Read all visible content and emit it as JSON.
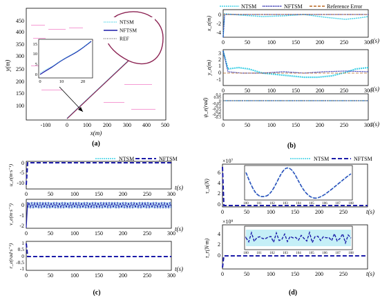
{
  "colors": {
    "ntsm": "#3fd0e6",
    "nftsm": "#1a1aa8",
    "ref": "#7a1f4e",
    "err": "#b5651d",
    "traj": "#8b2252"
  },
  "panels": {
    "a": {
      "label": "(a)",
      "legend": [
        "NTSM",
        "NFTSM",
        "REF"
      ],
      "xlabel": "x(m)",
      "ylabel": "y(m)",
      "xticks": [
        "-100",
        "0",
        "100",
        "200",
        "300",
        "400",
        "500"
      ],
      "yticks": [
        "100",
        "150",
        "200",
        "250",
        "300",
        "350",
        "400",
        "450"
      ],
      "inset_xticks": [
        "0",
        "10",
        "20"
      ],
      "inset_yticks": [
        "0",
        "5",
        "10",
        "15"
      ]
    },
    "b": {
      "label": "(b)",
      "legend": [
        "NTSM",
        "NFTSM",
        "Reference Error"
      ],
      "ylabels": [
        "x_e(m)",
        "y_e(m)",
        "ψ_e(rad)"
      ],
      "xlabel": "t(s)",
      "xticks": [
        "0",
        "50",
        "100",
        "150",
        "200",
        "250",
        "300"
      ],
      "yticks_x": [
        "0",
        "-2",
        "-4"
      ],
      "yticks_y": [
        "3",
        "2",
        "1",
        "0",
        "-1"
      ],
      "yticks_psi": [
        "0.1",
        "0.05",
        "0",
        "-0.05",
        "-0.1",
        "-0.15",
        "-0.2",
        "-0.25",
        "-0.3"
      ]
    },
    "c": {
      "label": "(c)",
      "legend": [
        "NTSM",
        "NFTSM"
      ],
      "ylabels": [
        "u_e(m·s⁻¹)",
        "v_e(m·s⁻¹)",
        "r_e(rad·s⁻¹)"
      ],
      "xlabel": "t(s)",
      "xticks": [
        "0",
        "50",
        "100",
        "150",
        "200",
        "250",
        "300"
      ],
      "yticks_u": [
        "0",
        "-5",
        "-10"
      ],
      "yticks_v": [
        "0",
        "-1",
        "-2"
      ],
      "yticks_r": [
        "1",
        "0.5",
        "0",
        "-0.5",
        "-1"
      ]
    },
    "d": {
      "label": "(d)",
      "legend": [
        "NTSM",
        "NFTSM"
      ],
      "ylabels": [
        "τ_u(N)",
        "τ_r(N·m)"
      ],
      "xlabel": "t(s)",
      "xticks": [
        "0",
        "50",
        "100",
        "150",
        "200",
        "250",
        "300"
      ],
      "exp_u": "×10⁷",
      "exp_r": "×10⁹",
      "yticks_tu": [
        "6",
        "4",
        "2",
        "0"
      ],
      "yticks_tr": [
        "4",
        "2",
        "0"
      ],
      "inset_xticks": [
        "100",
        "101",
        "102",
        "103",
        "104",
        "105",
        "106",
        "107",
        "108"
      ]
    }
  },
  "chart_data": [
    {
      "type": "line",
      "panel": "a",
      "xlabel": "x(m)",
      "ylabel": "y(m)",
      "xlim": [
        -200,
        500
      ],
      "ylim": [
        50,
        480
      ],
      "series": [
        {
          "name": "NTSM"
        },
        {
          "name": "NFTSM"
        },
        {
          "name": "REF"
        }
      ]
    },
    {
      "type": "line",
      "panel": "b",
      "xlim": [
        0,
        300
      ],
      "series": [
        {
          "name": "NTSM"
        },
        {
          "name": "NFTSM"
        },
        {
          "name": "Reference Error"
        }
      ]
    },
    {
      "type": "line",
      "panel": "c",
      "xlim": [
        0,
        300
      ],
      "series": [
        {
          "name": "NTSM"
        },
        {
          "name": "NFTSM"
        }
      ]
    },
    {
      "type": "line",
      "panel": "d",
      "xlim": [
        0,
        300
      ],
      "series": [
        {
          "name": "NTSM"
        },
        {
          "name": "NFTSM"
        }
      ]
    }
  ]
}
